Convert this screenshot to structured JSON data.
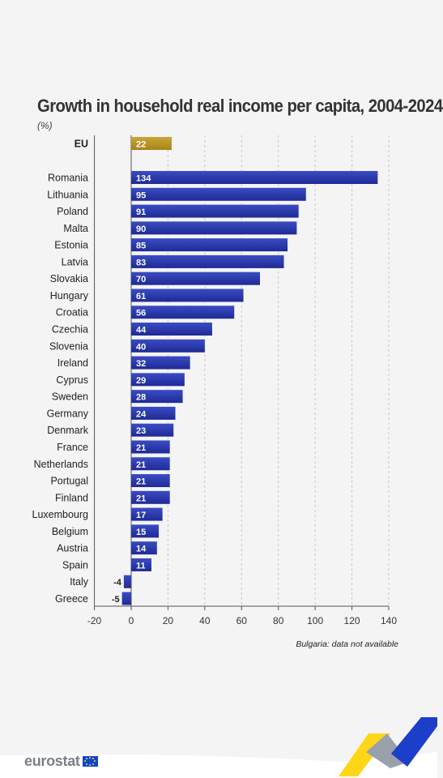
{
  "title": "Growth in household real income per capita, 2004-2024",
  "unit": "(%)",
  "footnote": "Bulgaria: data not available",
  "logo_text": "eurostat",
  "colors": {
    "bar": "#2b36a6",
    "eu_bar": "#b89524",
    "background": "#f4f4f4",
    "grid": "#c8c8c8"
  },
  "chart_data": {
    "type": "bar",
    "orientation": "horizontal",
    "title": "Growth in household real income per capita, 2004-2024",
    "unit": "(%)",
    "xlim": [
      -20,
      140
    ],
    "xticks": [
      -20,
      0,
      20,
      40,
      60,
      80,
      100,
      120,
      140
    ],
    "grid": "vertical dashed",
    "data_labels": true,
    "highlight": {
      "category": "EU",
      "value": 22
    },
    "categories": [
      "Romania",
      "Lithuania",
      "Poland",
      "Malta",
      "Estonia",
      "Latvia",
      "Slovakia",
      "Hungary",
      "Croatia",
      "Czechia",
      "Slovenia",
      "Ireland",
      "Cyprus",
      "Sweden",
      "Germany",
      "Denmark",
      "France",
      "Netherlands",
      "Portugal",
      "Finland",
      "Luxembourg",
      "Belgium",
      "Austria",
      "Spain",
      "Italy",
      "Greece"
    ],
    "values": [
      134,
      95,
      91,
      90,
      85,
      83,
      70,
      61,
      56,
      44,
      40,
      32,
      29,
      28,
      24,
      23,
      21,
      21,
      21,
      21,
      17,
      15,
      14,
      11,
      -4,
      -5
    ]
  }
}
